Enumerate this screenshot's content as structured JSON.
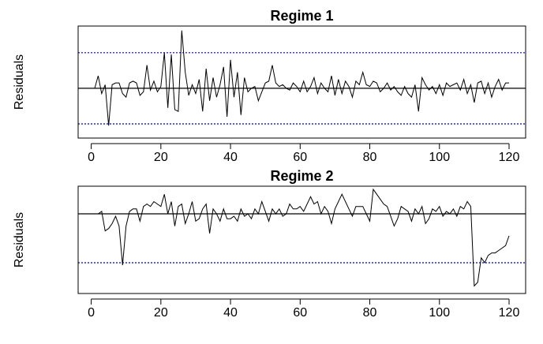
{
  "chart_data": [
    {
      "type": "line",
      "title": "Regime 1",
      "ylabel": "Residuals",
      "xlim": [
        -3.76,
        124.76
      ],
      "xticks": [
        0,
        20,
        40,
        60,
        80,
        100,
        120
      ],
      "ylim": [
        -2.8,
        3.5
      ],
      "reference_lines": [
        {
          "value": 0,
          "color": "#000000",
          "style": "solid"
        },
        {
          "value": 2,
          "color": "#0000cc",
          "style": "dotted"
        },
        {
          "value": -2,
          "color": "#0000cc",
          "style": "dotted"
        }
      ],
      "x": [
        1,
        2,
        3,
        4,
        5,
        6,
        7,
        8,
        9,
        10,
        11,
        12,
        13,
        14,
        15,
        16,
        17,
        18,
        19,
        20,
        21,
        22,
        23,
        24,
        25,
        26,
        27,
        28,
        29,
        30,
        31,
        32,
        33,
        34,
        35,
        36,
        37,
        38,
        39,
        40,
        41,
        42,
        43,
        44,
        45,
        46,
        47,
        48,
        49,
        50,
        51,
        52,
        53,
        54,
        55,
        56,
        57,
        58,
        59,
        60,
        61,
        62,
        63,
        64,
        65,
        66,
        67,
        68,
        69,
        70,
        71,
        72,
        73,
        74,
        75,
        76,
        77,
        78,
        79,
        80,
        81,
        82,
        83,
        84,
        85,
        86,
        87,
        88,
        89,
        90,
        91,
        92,
        93,
        94,
        95,
        96,
        97,
        98,
        99,
        100,
        101,
        102,
        103,
        104,
        105,
        106,
        107,
        108,
        109,
        110,
        111,
        112,
        113,
        114,
        115,
        116,
        117,
        118,
        119,
        120
      ],
      "series": [
        {
          "color": "#000000",
          "values": [
            0.0,
            0.7,
            -0.3,
            0.2,
            -2.1,
            0.2,
            0.3,
            0.3,
            -0.3,
            -0.5,
            0.3,
            0.4,
            0.3,
            -0.4,
            -0.2,
            1.3,
            -0.1,
            0.4,
            -0.2,
            0.1,
            2.0,
            -1.1,
            1.9,
            -1.2,
            -1.3,
            3.25,
            0.9,
            -0.4,
            0.2,
            -0.3,
            0.5,
            -1.3,
            1.1,
            -0.7,
            0.6,
            -0.5,
            0.2,
            1.2,
            -1.6,
            1.6,
            -0.5,
            0.9,
            -1.5,
            0.6,
            -0.2,
            0.0,
            0.1,
            -0.7,
            -0.2,
            0.3,
            0.4,
            1.3,
            0.3,
            0.1,
            0.2,
            0.0,
            -0.1,
            0.3,
            0.1,
            -0.2,
            0.4,
            -0.2,
            0.1,
            0.6,
            -0.3,
            0.3,
            0.0,
            -0.2,
            0.7,
            -0.4,
            0.5,
            -0.3,
            0.4,
            0.1,
            -0.5,
            0.4,
            0.2,
            0.9,
            0.2,
            0.1,
            0.4,
            0.3,
            -0.2,
            0.0,
            0.3,
            -0.1,
            0.1,
            -0.2,
            -0.4,
            0.1,
            -0.3,
            -0.5,
            0.2,
            -1.3,
            0.6,
            0.2,
            -0.1,
            0.1,
            -0.3,
            0.2,
            -0.4,
            0.3,
            0.1,
            0.2,
            0.3,
            -0.1,
            0.5,
            -0.3,
            0.2,
            -0.8,
            0.3,
            0.4,
            -0.3,
            0.3,
            -0.5,
            0.1,
            0.5,
            -0.1,
            0.3,
            0.3
          ]
        }
      ]
    },
    {
      "type": "line",
      "title": "Regime 2",
      "ylabel": "Residuals",
      "xlim": [
        -3.76,
        124.76
      ],
      "xticks": [
        0,
        20,
        40,
        60,
        80,
        100,
        120
      ],
      "ylim": [
        -3.26,
        1.13
      ],
      "reference_lines": [
        {
          "value": 0,
          "color": "#000000",
          "style": "solid"
        },
        {
          "value": -2,
          "color": "#0000cc",
          "style": "dotted"
        }
      ],
      "x": [
        1,
        2,
        3,
        4,
        5,
        6,
        7,
        8,
        9,
        10,
        11,
        12,
        13,
        14,
        15,
        16,
        17,
        18,
        19,
        20,
        21,
        22,
        23,
        24,
        25,
        26,
        27,
        28,
        29,
        30,
        31,
        32,
        33,
        34,
        35,
        36,
        37,
        38,
        39,
        40,
        41,
        42,
        43,
        44,
        45,
        46,
        47,
        48,
        49,
        50,
        51,
        52,
        53,
        54,
        55,
        56,
        57,
        58,
        59,
        60,
        61,
        62,
        63,
        64,
        65,
        66,
        67,
        68,
        69,
        70,
        71,
        72,
        73,
        74,
        75,
        76,
        77,
        78,
        79,
        80,
        81,
        82,
        83,
        84,
        85,
        86,
        87,
        88,
        89,
        90,
        91,
        92,
        93,
        94,
        95,
        96,
        97,
        98,
        99,
        100,
        101,
        102,
        103,
        104,
        105,
        106,
        107,
        108,
        109,
        110,
        111,
        112,
        113,
        114,
        115,
        116,
        117,
        118,
        119,
        120
      ],
      "series": [
        {
          "color": "#000000",
          "values": [
            0.0,
            0.0,
            0.1,
            -0.7,
            -0.6,
            -0.4,
            -0.1,
            -0.5,
            -2.1,
            -0.5,
            0.1,
            0.2,
            0.2,
            -0.3,
            0.3,
            0.4,
            0.3,
            0.5,
            0.4,
            0.3,
            0.8,
            0.0,
            0.5,
            -0.5,
            0.3,
            0.4,
            -0.4,
            0.0,
            0.5,
            -0.3,
            -0.2,
            0.2,
            0.4,
            -0.8,
            0.2,
            0.0,
            -0.3,
            0.2,
            -0.2,
            -0.2,
            -0.1,
            -0.3,
            0.2,
            -0.1,
            0.0,
            -0.2,
            0.2,
            0.0,
            0.5,
            0.1,
            -0.3,
            0.2,
            0.0,
            0.2,
            -0.1,
            0.0,
            0.4,
            0.2,
            0.2,
            0.3,
            0.1,
            0.4,
            0.7,
            0.4,
            0.5,
            0.0,
            0.3,
            0.1,
            -0.4,
            0.2,
            0.5,
            0.8,
            0.5,
            0.2,
            -0.1,
            0.3,
            0.3,
            0.3,
            0.0,
            -0.3,
            1.0,
            0.8,
            0.6,
            0.4,
            0.3,
            -0.1,
            -0.5,
            -0.2,
            0.3,
            0.2,
            0.1,
            -0.3,
            0.2,
            0.0,
            0.3,
            -0.4,
            -0.2,
            0.2,
            0.1,
            0.3,
            -0.1,
            0.1,
            0.0,
            0.2,
            -0.1,
            0.3,
            0.2,
            0.5,
            0.3,
            -2.95,
            -2.8,
            -1.8,
            -2.0,
            -1.7,
            -1.6,
            -1.6,
            -1.5,
            -1.4,
            -1.3,
            -0.9
          ]
        }
      ]
    }
  ]
}
